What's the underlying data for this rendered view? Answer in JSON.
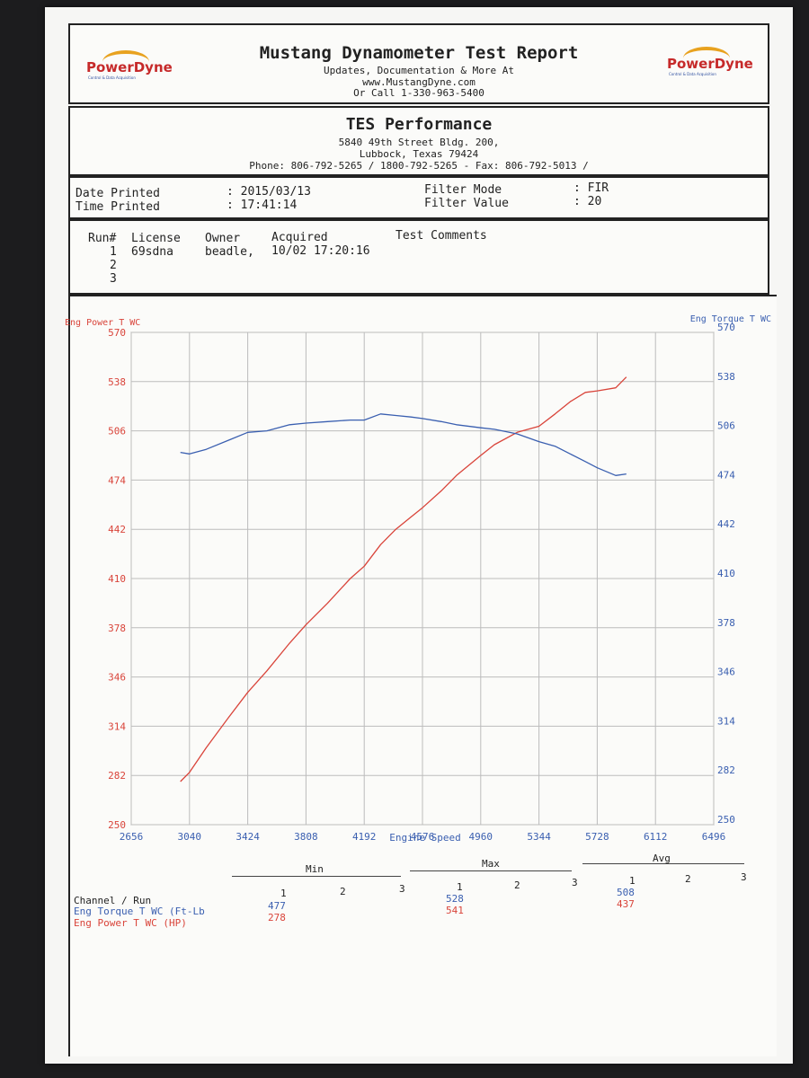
{
  "header": {
    "title": "Mustang Dynamometer Test Report",
    "lines": [
      "Updates, Documentation & More At",
      "www.MustangDyne.com",
      "Or Call 1-330-963-5400"
    ],
    "logo_text": "PowerDyne",
    "logo_tagline": "Control & Data Acquisition"
  },
  "shop": {
    "name": "TES Performance",
    "address1": "5840 49th Street Bldg. 200,",
    "address2": "Lubbock, Texas  79424",
    "phone": "Phone: 806-792-5265 / 1800-792-5265 - Fax: 806-792-5013 /"
  },
  "print_info": {
    "date_label": "Date Printed",
    "date_value": ": 2015/03/13",
    "time_label": "Time Printed",
    "time_value": ": 17:41:14",
    "filter_mode_label": "Filter Mode",
    "filter_mode_value": ": FIR",
    "filter_value_label": "Filter Value",
    "filter_value_value": ": 20"
  },
  "runs": {
    "headers": [
      "Run#",
      "License",
      "Owner",
      "Acquired",
      "Test Comments"
    ],
    "rows": [
      {
        "run": "1",
        "license": "69sdna",
        "owner": "beadle,",
        "acquired": "10/02 17:20:16",
        "comments": ""
      },
      {
        "run": "2",
        "license": "",
        "owner": "",
        "acquired": "",
        "comments": ""
      },
      {
        "run": "3",
        "license": "",
        "owner": "",
        "acquired": "",
        "comments": ""
      }
    ]
  },
  "colors": {
    "power": "#d9443a",
    "torque": "#3a5fb0",
    "grid": "#bcbcbc"
  },
  "chart_data": {
    "type": "line",
    "xlabel": "Engine Speed",
    "xlim": [
      2656,
      6496
    ],
    "x_ticks": [
      "2656",
      "3040",
      "3424",
      "3808",
      "4192",
      "4576",
      "4960",
      "5344",
      "5728",
      "6112",
      "6496"
    ],
    "left_axis": {
      "label": "Eng Power T WC",
      "ylim": [
        250,
        570
      ],
      "ticks": [
        "570",
        "538",
        "506",
        "474",
        "442",
        "410",
        "378",
        "346",
        "314",
        "282",
        "250"
      ]
    },
    "right_axis": {
      "label": "Eng Torque T WC",
      "ylim": [
        250,
        570
      ],
      "ticks": [
        "570",
        "538",
        "506",
        "474",
        "442",
        "410",
        "378",
        "346",
        "314",
        "282",
        "250"
      ]
    },
    "grid": true,
    "series": [
      {
        "name": "Eng Power T WC",
        "axis": "left",
        "color": "#d9443a",
        "x": [
          2980,
          3040,
          3150,
          3300,
          3424,
          3550,
          3700,
          3808,
          3950,
          4100,
          4192,
          4300,
          4400,
          4500,
          4576,
          4700,
          4800,
          4960,
          5050,
          5200,
          5344,
          5450,
          5550,
          5650,
          5728,
          5850,
          5920
        ],
        "y": [
          278,
          284,
          300,
          320,
          336,
          350,
          368,
          380,
          394,
          410,
          418,
          432,
          442,
          450,
          456,
          467,
          477,
          490,
          497,
          505,
          509,
          517,
          525,
          531,
          532,
          534,
          541
        ]
      },
      {
        "name": "Eng Torque T WC",
        "axis": "right",
        "color": "#3a5fb0",
        "x": [
          2980,
          3040,
          3150,
          3300,
          3424,
          3550,
          3700,
          3808,
          3950,
          4100,
          4192,
          4300,
          4400,
          4500,
          4576,
          4700,
          4800,
          4960,
          5050,
          5200,
          5344,
          5450,
          5550,
          5650,
          5728,
          5850,
          5920
        ],
        "y": [
          492,
          491,
          494,
          500,
          505,
          506,
          510,
          511,
          512,
          513,
          513,
          517,
          516,
          515,
          514,
          512,
          510,
          508,
          507,
          504,
          499,
          496,
          491,
          486,
          482,
          477,
          478
        ]
      }
    ]
  },
  "summary": {
    "groups": [
      "Min",
      "Max",
      "Avg"
    ],
    "run_numbers": [
      "1",
      "2",
      "3"
    ],
    "channel_label": "Channel / Run",
    "rows": [
      {
        "name": "Eng Torque T WC (Ft-Lb",
        "min": "477",
        "max": "528",
        "avg": "508"
      },
      {
        "name": "Eng Power T WC (HP)",
        "min": "278",
        "max": "541",
        "avg": "437"
      }
    ]
  }
}
